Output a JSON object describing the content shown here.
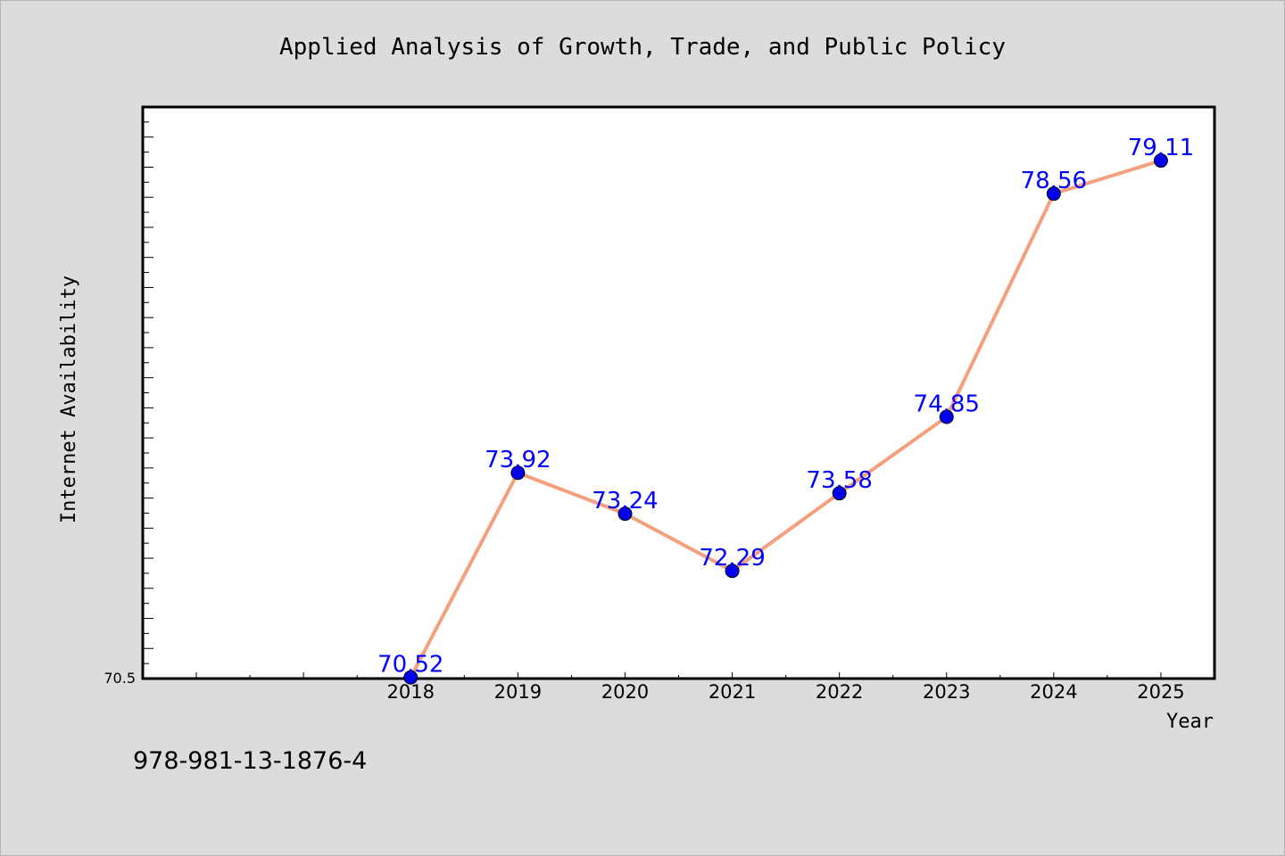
{
  "chart_data": {
    "type": "line",
    "title": "Applied Analysis of Growth, Trade, and Public Policy",
    "xlabel": "Year",
    "ylabel": "Internet Availability",
    "categories": [
      "2018",
      "2019",
      "2020",
      "2021",
      "2022",
      "2023",
      "2024",
      "2025"
    ],
    "series": [
      {
        "values": [
          70.52,
          73.92,
          73.24,
          72.29,
          73.58,
          74.85,
          78.56,
          79.11
        ],
        "labels": [
          "70.52",
          "73.92",
          "73.24",
          "72.29",
          "73.58",
          "74.85",
          "78.56",
          "79.11"
        ]
      }
    ],
    "y_tick_labels": [
      "70.5"
    ],
    "ylim": [
      70.5,
      80.0
    ],
    "xlim": [
      2015.5,
      2025.5
    ],
    "grid": false,
    "legend": "none",
    "line_color": "#f4a07e",
    "marker_color": "#0000ee",
    "data_label_color": "#0000ff"
  },
  "footer": {
    "isbn": "978-981-13-1876-4"
  }
}
